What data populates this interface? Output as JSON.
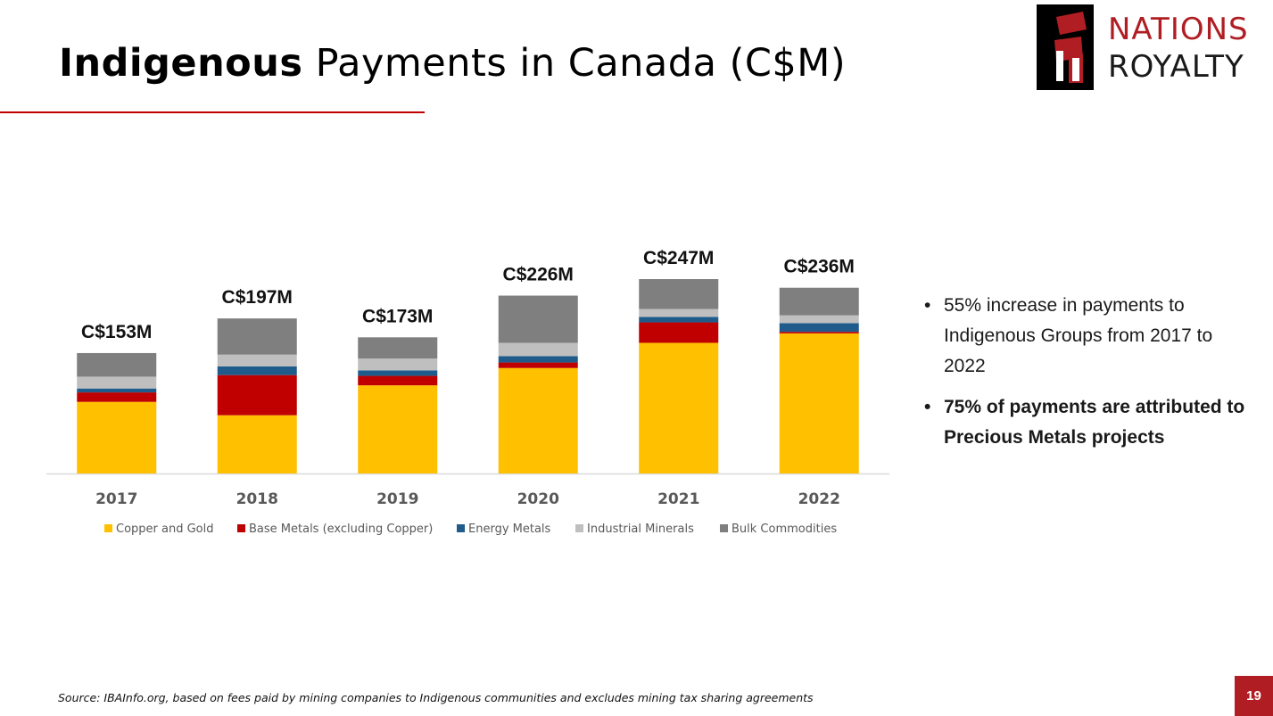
{
  "slide": {
    "title_bold": "Indigenous",
    "title_rest": "Payments in Canada (C$M)",
    "source": "Source: IBAInfo.org, based on fees paid by mining companies to Indigenous communities and excludes mining tax sharing agreements",
    "page_number": "19"
  },
  "logo": {
    "line1": "NATIONS",
    "line2": "ROYALTY",
    "colors": {
      "red": "#b01e23",
      "dark": "#1a1a1a",
      "mark": "#000000"
    }
  },
  "bullets": [
    {
      "marker": "•",
      "text": "55% increase in payments to Indigenous Groups from 2017 to 2022"
    },
    {
      "marker": "•",
      "text": "75% of payments are attributed to Precious Metals projects"
    }
  ],
  "colors": {
    "accent": "#c00000",
    "page_badge": "#b01e23"
  },
  "chart_data": {
    "type": "bar",
    "stacked": true,
    "categories": [
      "2017",
      "2018",
      "2019",
      "2020",
      "2021",
      "2022"
    ],
    "totals_labels": [
      "C$153M",
      "C$197M",
      "C$173M",
      "C$226M",
      "C$247M",
      "C$236M"
    ],
    "series": [
      {
        "name": "Copper and Gold",
        "color": "#ffc000",
        "values": [
          91,
          74,
          112,
          134,
          166,
          178
        ]
      },
      {
        "name": "Base Metals (excluding Copper)",
        "color": "#c00000",
        "values": [
          12,
          51,
          12,
          7,
          26,
          2
        ]
      },
      {
        "name": "Energy Metals",
        "color": "#1f5c8b",
        "values": [
          5,
          11,
          7,
          8,
          7,
          11
        ]
      },
      {
        "name": "Industrial Minerals",
        "color": "#bfbfbf",
        "values": [
          15,
          15,
          15,
          17,
          10,
          10
        ]
      },
      {
        "name": "Bulk Commodities",
        "color": "#7f7f7f",
        "values": [
          30,
          46,
          27,
          60,
          38,
          35
        ]
      }
    ],
    "ylim": [
      0,
      247
    ],
    "grid": false,
    "legend_position": "bottom"
  }
}
